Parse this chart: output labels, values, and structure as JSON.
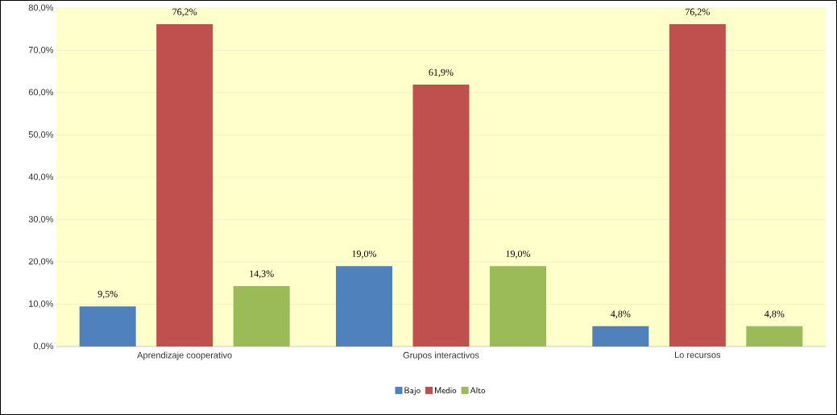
{
  "chart_data": {
    "type": "bar",
    "categories": [
      "Aprendizaje cooperativo",
      "Grupos interactivos",
      "Lo recursos"
    ],
    "series": [
      {
        "name": "Bajo",
        "color": "#4f81bd",
        "values": [
          9.5,
          19.0,
          4.8
        ],
        "value_labels": [
          "9,5%",
          "19,0%",
          "4,8%"
        ]
      },
      {
        "name": "Medio",
        "color": "#c0504d",
        "values": [
          76.2,
          61.9,
          76.2
        ],
        "value_labels": [
          "76,2%",
          "61,9%",
          "76,2%"
        ]
      },
      {
        "name": "Alto",
        "color": "#9bbb59",
        "values": [
          14.3,
          19.0,
          4.8
        ],
        "value_labels": [
          "14,3%",
          "19,0%",
          "4,8%"
        ]
      }
    ],
    "ylim": [
      0,
      80
    ],
    "yticks": [
      {
        "value": 0,
        "label": "0,0%"
      },
      {
        "value": 10,
        "label": "10,0%"
      },
      {
        "value": 20,
        "label": "20,0%"
      },
      {
        "value": 30,
        "label": "30,0%"
      },
      {
        "value": 40,
        "label": "40,0%"
      },
      {
        "value": 50,
        "label": "50,0%"
      },
      {
        "value": 60,
        "label": "60,0%"
      },
      {
        "value": 70,
        "label": "70,0%"
      },
      {
        "value": 80,
        "label": "80,0%"
      }
    ],
    "grid": "y",
    "legend": "bottom"
  }
}
